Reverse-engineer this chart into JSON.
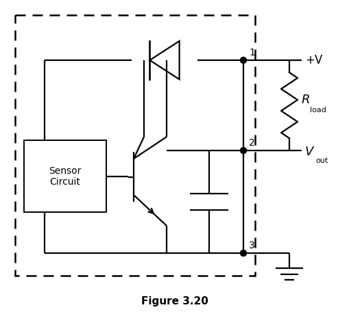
{
  "title": "Figure 3.20",
  "background_color": "#ffffff",
  "line_color": "#000000",
  "labels": {
    "plus_v": "+V",
    "r_load": "R",
    "r_load_sub": "load",
    "v_out": "V",
    "v_out_sub": "out",
    "node1": "1",
    "node2": "2",
    "node3": "3",
    "sensor_line1": "Sensor",
    "sensor_line2": "Circuit",
    "figure": "Figure 3.20"
  }
}
